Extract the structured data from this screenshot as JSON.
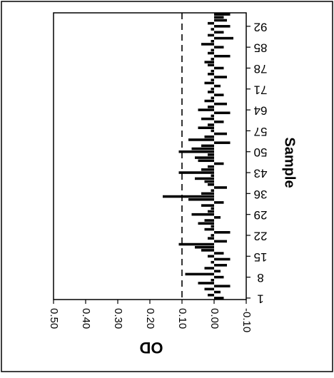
{
  "chart_data": {
    "type": "bar",
    "orientation": "rotated 90 degrees clockwise (sample index runs bottom to top, OD increases to the left)",
    "xlabel": "Sample",
    "ylabel": "OD",
    "ylim": [
      -0.1,
      0.5
    ],
    "y_ticks": [
      "0.50",
      "0.40",
      "0.30",
      "0.20",
      "0.10",
      "0.00",
      "-0.10"
    ],
    "x_ticks": [
      "1",
      "8",
      "15",
      "22",
      "29",
      "36",
      "43",
      "50",
      "57",
      "64",
      "71",
      "78",
      "85",
      "92"
    ],
    "threshold": {
      "value": 0.1,
      "style": "dashed"
    },
    "grid": false,
    "legend": "none",
    "x": [
      1,
      2,
      3,
      4,
      5,
      6,
      7,
      8,
      9,
      10,
      11,
      12,
      13,
      14,
      15,
      16,
      17,
      18,
      19,
      20,
      21,
      22,
      23,
      24,
      25,
      26,
      27,
      28,
      29,
      30,
      31,
      32,
      33,
      34,
      35,
      36,
      37,
      38,
      39,
      40,
      41,
      42,
      43,
      44,
      45,
      46,
      47,
      48,
      49,
      50,
      51,
      52,
      53,
      54,
      55,
      56,
      57,
      58,
      59,
      60,
      61,
      62,
      63,
      64,
      65,
      66,
      67,
      68,
      69,
      70,
      71,
      72,
      73,
      74,
      75,
      76,
      77,
      78,
      79,
      80,
      81,
      82,
      83,
      84,
      85,
      86,
      87,
      88,
      89,
      90,
      91,
      92,
      93,
      94,
      95,
      96
    ],
    "values": [
      -0.03,
      0.02,
      -0.02,
      0.03,
      -0.05,
      0.05,
      0.01,
      -0.03,
      0.09,
      -0.02,
      0.03,
      -0.04,
      0.01,
      -0.05,
      0.02,
      -0.03,
      0.04,
      0.06,
      0.11,
      -0.04,
      0.02,
      0.01,
      -0.05,
      0.03,
      0.01,
      0.05,
      0.03,
      -0.02,
      0.07,
      0.02,
      0.01,
      0.04,
      -0.03,
      0.08,
      0.16,
      0.04,
      0.01,
      -0.04,
      0.02,
      0.03,
      0.06,
      0.01,
      0.11,
      0.04,
      0.02,
      -0.03,
      0.05,
      0.06,
      0.02,
      0.11,
      0.07,
      0.04,
      -0.05,
      0.08,
      0.03,
      -0.04,
      0.01,
      0.05,
      0.02,
      -0.03,
      0.04,
      0.01,
      -0.05,
      0.05,
      0.02,
      -0.04,
      0.03,
      0.01,
      -0.03,
      0.02,
      0.01,
      -0.02,
      0.03,
      0.01,
      -0.04,
      0.02,
      0.01,
      -0.03,
      0.02,
      0.03,
      0.01,
      -0.05,
      0.02,
      0.01,
      -0.03,
      0.04,
      0.01,
      -0.06,
      0.02,
      -0.03,
      0.01,
      -0.05,
      0.02,
      -0.04,
      -0.03,
      -0.05
    ]
  }
}
